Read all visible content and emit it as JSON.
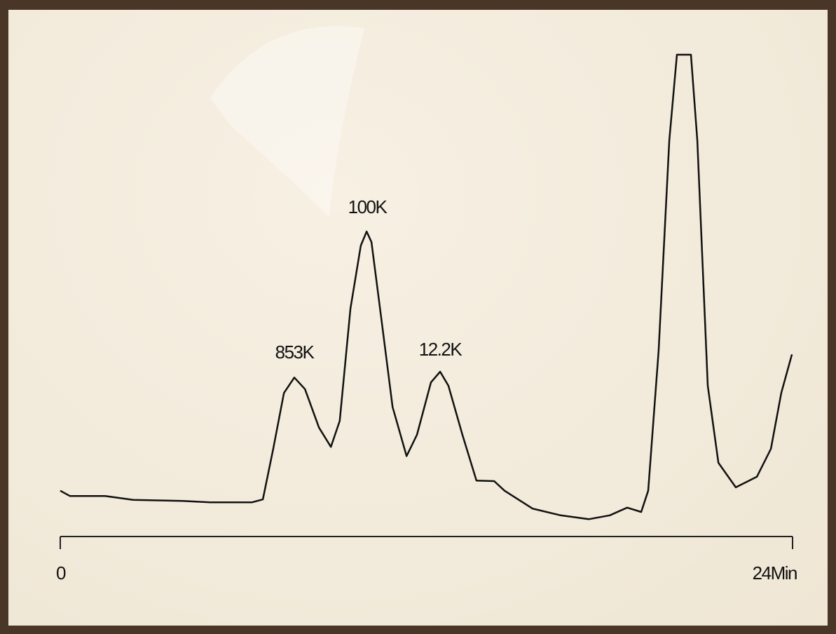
{
  "chart_data": {
    "type": "line",
    "x": [
      0,
      0.32,
      1.47,
      2.39,
      4.0,
      4.91,
      6.29,
      6.64,
      6.98,
      7.33,
      7.67,
      8.02,
      8.48,
      8.87,
      9.16,
      9.51,
      9.85,
      10.04,
      10.2,
      10.54,
      10.89,
      11.35,
      11.69,
      12.15,
      12.45,
      12.72,
      13.18,
      13.64,
      14.22,
      14.56,
      15.48,
      16.4,
      17.32,
      18.01,
      18.58,
      19.04,
      19.27,
      19.61,
      19.96,
      20.21,
      20.67,
      20.88,
      21.22,
      21.57,
      22.14,
      22.83,
      23.29,
      23.63,
      23.98
    ],
    "series": [
      {
        "color": "#111111",
        "values": [
          9.5,
          8.4,
          8.4,
          7.6,
          7.4,
          7.1,
          7.1,
          7.7,
          18.2,
          29.8,
          33.0,
          30.6,
          22.6,
          18.6,
          24.0,
          47.3,
          60.4,
          63.3,
          61.1,
          44.4,
          26.9,
          16.7,
          21.1,
          32.0,
          34.2,
          31.3,
          21.1,
          11.6,
          11.5,
          9.5,
          5.8,
          4.4,
          3.6,
          4.4,
          6.0,
          5.1,
          9.5,
          38.6,
          82.2,
          100,
          100,
          82.2,
          31.3,
          15.3,
          10.2,
          12.4,
          18.2,
          29.8,
          37.8
        ]
      }
    ],
    "annotations": [
      "853K",
      "100K",
      "12.2K"
    ],
    "xlim": [
      0,
      24
    ],
    "xticks": [
      0,
      {
        "value": 24,
        "label": "24Min"
      }
    ],
    "ylim": [
      0,
      100
    ]
  }
}
